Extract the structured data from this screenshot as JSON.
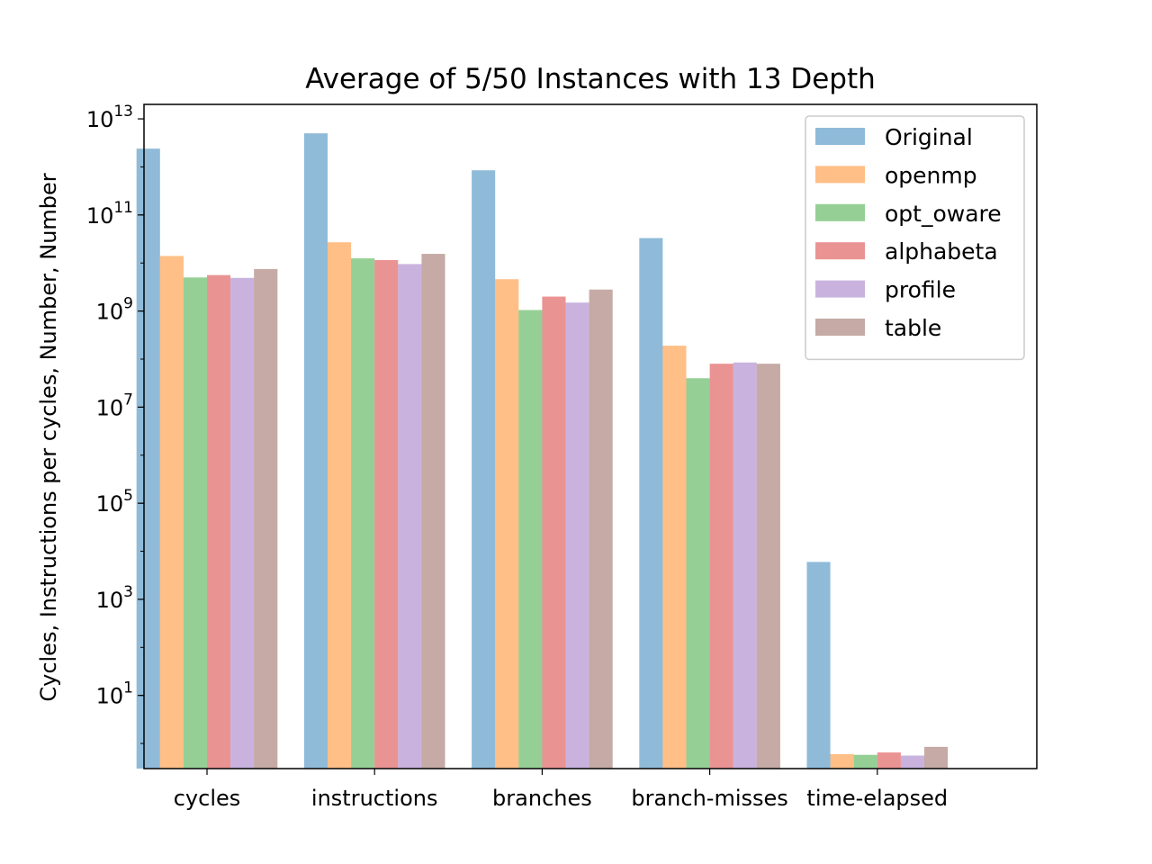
{
  "chart_data": {
    "type": "bar",
    "title": "Average of 5/50 Instances with 13 Depth",
    "xlabel": "",
    "ylabel": "Cycles, Instructions per cycles, Number, Number",
    "yscale": "log",
    "ylim": [
      0.3,
      20000000000000
    ],
    "yticks": [
      {
        "value": 10,
        "base": "10",
        "exp": "1"
      },
      {
        "value": 1000,
        "base": "10",
        "exp": "3"
      },
      {
        "value": 100000,
        "base": "10",
        "exp": "5"
      },
      {
        "value": 10000000,
        "base": "10",
        "exp": "7"
      },
      {
        "value": 1000000000,
        "base": "10",
        "exp": "9"
      },
      {
        "value": 100000000000,
        "base": "10",
        "exp": "11"
      },
      {
        "value": 10000000000000,
        "base": "10",
        "exp": "13"
      }
    ],
    "categories": [
      "cycles",
      "instructions",
      "branches",
      "branch-misses",
      "time-elapsed"
    ],
    "series": [
      {
        "name": "Original",
        "color": "#1f77b4",
        "values": [
          2400000000000,
          5000000000000,
          850000000000,
          33000000000,
          6000
        ]
      },
      {
        "name": "openmp",
        "color": "#ff7f0e",
        "values": [
          14000000000,
          27000000000,
          4600000000,
          190000000,
          0.6
        ]
      },
      {
        "name": "opt_oware",
        "color": "#2ca02c",
        "values": [
          5000000000,
          12500000000,
          1050000000,
          40000000,
          0.58
        ]
      },
      {
        "name": "alphabeta",
        "color": "#d62728",
        "values": [
          5600000000,
          11500000000,
          2000000000,
          80000000,
          0.65
        ]
      },
      {
        "name": "profile",
        "color": "#9467bd",
        "values": [
          4900000000,
          9500000000,
          1500000000,
          85000000,
          0.56
        ]
      },
      {
        "name": "table",
        "color": "#8c564b",
        "values": [
          7500000000,
          15500000000,
          2800000000,
          80000000,
          0.85
        ]
      }
    ],
    "bar_alpha": 0.5,
    "grid": false,
    "legend_position": "top-right"
  }
}
